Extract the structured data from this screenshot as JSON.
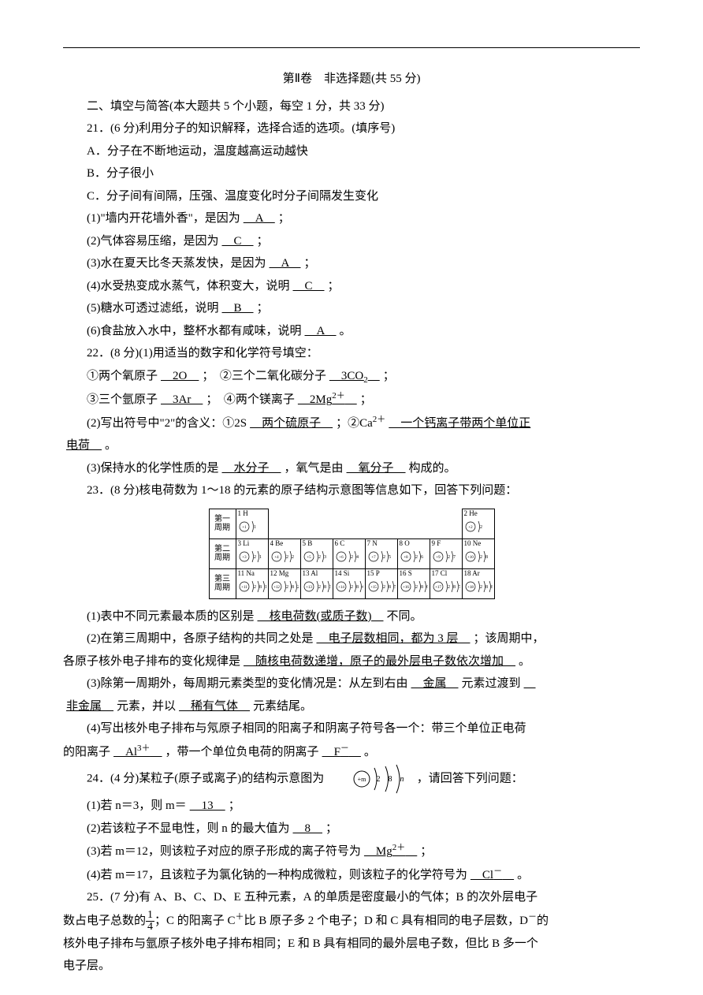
{
  "header": {
    "title": "第Ⅱ卷　非选择题(共 55 分)",
    "section": "二、填空与简答(本大题共 5 个小题，每空 1 分，共 33 分)"
  },
  "q21": {
    "stem": "21．(6 分)利用分子的知识解释，选择合适的选项。(填序号)",
    "optA": "A．分子在不断地运动，温度越高运动越快",
    "optB": "B．分子很小",
    "optC": "C．分子间有间隔，压强、温度变化时分子间隔发生变化",
    "p1a": "(1)\"墙内开花墙外香\"，是因为",
    "p1ans": "　A　",
    "p1b": "；",
    "p2a": "(2)气体容易压缩，是因为",
    "p2ans": "　C　",
    "p2b": "；",
    "p3a": "(3)水在夏天比冬天蒸发快，是因为",
    "p3ans": "　A　",
    "p3b": "；",
    "p4a": "(4)水受热变成水蒸气，体积变大，说明",
    "p4ans": "　C　",
    "p4b": "；",
    "p5a": "(5)糖水可透过滤纸，说明",
    "p5ans": "　B　",
    "p5b": "；",
    "p6a": "(6)食盐放入水中，整杯水都有咸味，说明",
    "p6ans": "　A　",
    "p6b": "。"
  },
  "q22": {
    "stem": "22．(8 分)(1)用适当的数字和化学符号填空：",
    "l1a": "①两个氧原子",
    "l1ans": "　2O　",
    "l1b": "；　②三个二氧化碳分子",
    "l1ans2": "　3CO",
    "l1sub": "2",
    "l1c": "　",
    "l1d": "；",
    "l2a": "③三个氩原子",
    "l2ans": "　3Ar　",
    "l2b": "；　④两个镁离子",
    "l2ans2": "　2Mg",
    "l2sup": "2＋",
    "l2c": "　",
    "l2d": "；",
    "p2a": "(2)写出符号中\"2\"的含义：①2S",
    "p2ans1": "　两个硫原子　",
    "p2b": "；②Ca",
    "p2sup": "2＋",
    "p2ans2": "　一个钙离子带两个单位正",
    "p2line2": "电荷　",
    "p2c": "。",
    "p3a": "(3)保持水的化学性质的是",
    "p3ans1": "　水分子　",
    "p3b": "，氧气是由",
    "p3ans2": "　氧分子　",
    "p3c": "构成的。"
  },
  "q23": {
    "stem": "23．(8 分)核电荷数为 1～18 的元素的原子结构示意图等信息如下，回答下列问题：",
    "p1a": "(1)表中不同元素最本质的区别是",
    "p1ans": "　核电荷数(或质子数)　",
    "p1b": "不同。",
    "p2a": "(2)在第三周期中，各原子结构的共同之处是",
    "p2ans1": "　电子层数相同，都为 3 层　",
    "p2b": "；该周期中，",
    "p2line2a": "各原子核外电子排布的变化规律是",
    "p2ans2": "　随核电荷数递增，原子的最外层电子数依次增加　",
    "p2c": "。",
    "p3a": "(3)除第一周期外，每周期元素类型的变化情况是：从左到右由",
    "p3ans1": "　金属　",
    "p3b": "元素过渡到",
    "p3line2ans": "非金属　",
    "p3c": "元素，并以",
    "p3ans3": "　稀有气体　",
    "p3d": "元素结尾。",
    "p4a": "(4)写出核外电子排布与氖原子相同的阳离子和阴离子符号各一个：带三个单位正电荷",
    "p4line2a": "的阳离子",
    "p4ans1": "　Al",
    "p4sup1": "3＋",
    "p4b": "　",
    "p4c": "，带一个单位负电荷的阴离子",
    "p4ans2": "　F",
    "p4sup2": "－",
    "p4d": "　",
    "p4e": "。"
  },
  "q24": {
    "stem_a": "24．(4 分)某粒子(原子或离子)的结构示意图为",
    "stem_b": "，请回答下列问题：",
    "diagram": {
      "core": "+m",
      "s1": "2",
      "s2": "8",
      "s3": "n"
    },
    "p1a": "(1)若 n＝3，则 m＝",
    "p1ans": "　13　",
    "p1b": "；",
    "p2a": "(2)若该粒子不显电性，则 n 的最大值为",
    "p2ans": "　8　",
    "p2b": "；",
    "p3a": "(3)若 m＝12，则该粒子对应的原子形成的离子符号为",
    "p3ans": "　Mg",
    "p3sup": "2＋",
    "p3b": "　",
    "p3c": "；",
    "p4a": "(4)若 m＝17，且该粒子为氯化钠的一种构成微粒，则该粒子的化学符号为",
    "p4ans": "　Cl",
    "p4sup": "－",
    "p4b": "　",
    "p4c": "。"
  },
  "q25": {
    "l1": "25．(7 分)有 A、B、C、D、E 五种元素，A 的单质是密度最小的气体；B 的次外层电子",
    "l2a": "数占电子总数的",
    "l2b": "；C 的阳离子 C",
    "l2sup": "＋",
    "l2c": "比 B 原子多 2 个电子；D 和 C 具有相同的电子层数，D",
    "l2sup2": "－",
    "l2d": "的",
    "frac_n": "1",
    "frac_d": "4",
    "l3": "核外电子排布与氩原子核外电子排布相同；E 和 B 具有相同的最外层电子数，但比 B 多一个",
    "l4": "电子层。"
  },
  "ptable": {
    "rows": [
      {
        "label": "第一周期",
        "cells": [
          "1  H",
          "",
          "",
          "",
          "",
          "",
          "",
          "2  He"
        ],
        "shells": [
          [
            1
          ],
          [],
          [],
          [],
          [],
          [],
          [],
          [
            2
          ]
        ]
      },
      {
        "label": "第二周期",
        "cells": [
          "3  Li",
          "4  Be",
          "5   B",
          "6  C",
          "7  N",
          "8  O",
          "9  F",
          "10 Ne"
        ],
        "shells": [
          [
            2,
            1
          ],
          [
            2,
            2
          ],
          [
            2,
            3
          ],
          [
            2,
            4
          ],
          [
            2,
            5
          ],
          [
            2,
            6
          ],
          [
            2,
            7
          ],
          [
            2,
            8
          ]
        ]
      },
      {
        "label": "第三周期",
        "cells": [
          "11 Na",
          "12 Mg",
          "13 Al",
          "14 Si",
          "15 P",
          "16 S",
          "17 Cl",
          "18 Ar"
        ],
        "shells": [
          [
            2,
            8,
            1
          ],
          [
            2,
            8,
            2
          ],
          [
            2,
            8,
            3
          ],
          [
            2,
            8,
            4
          ],
          [
            2,
            8,
            5
          ],
          [
            2,
            8,
            6
          ],
          [
            2,
            8,
            7
          ],
          [
            2,
            8,
            8
          ]
        ]
      }
    ]
  },
  "colors": {
    "text": "#000000",
    "bg": "#ffffff",
    "border": "#000000"
  }
}
